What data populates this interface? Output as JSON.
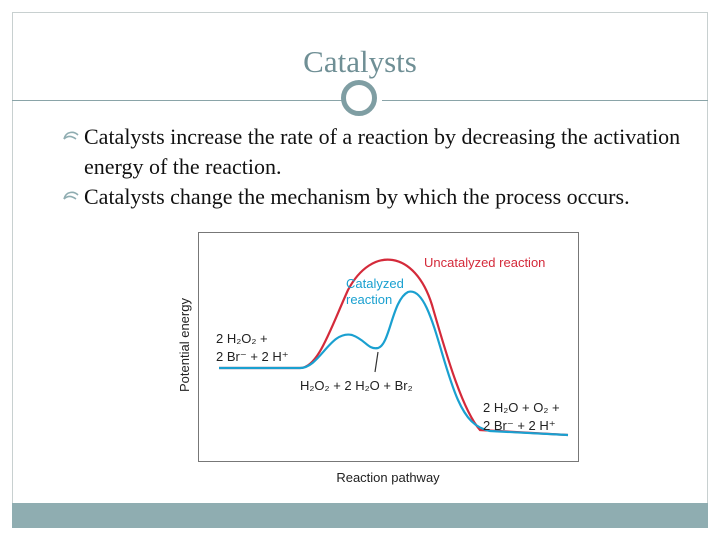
{
  "slide": {
    "title": "Catalysts",
    "bullets": [
      "Catalysts increase the rate of a reaction by decreasing the activation energy of the reaction.",
      "Catalysts change the mechanism by which the process occurs."
    ]
  },
  "diagram": {
    "y_axis_label": "Potential energy",
    "x_axis_label": "Reaction pathway",
    "uncatalyzed_label": "Uncatalyzed reaction",
    "catalyzed_label_1": "Catalyzed",
    "catalyzed_label_2": "reaction",
    "reactants_1": "2 H₂O₂ +",
    "reactants_2": "2 Br⁻ + 2 H⁺",
    "intermediate": "H₂O₂ + 2 H₂O + Br₂",
    "products_1": "2 H₂O + O₂ +",
    "products_2": "2 Br⁻ + 2 H⁺",
    "colors": {
      "uncatalyzed": "#d42a3a",
      "catalyzed": "#1aa0d0",
      "accent": "#8fadb1"
    }
  }
}
